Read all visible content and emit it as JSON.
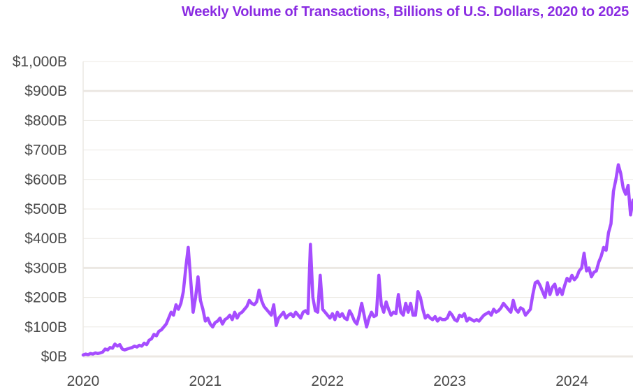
{
  "chart_data": {
    "type": "line",
    "title": "Weekly Volume of Transactions, Billions of U.S. Dollars, 2020 to 2025",
    "xlabel": "",
    "ylabel": "",
    "ylim": [
      0,
      1000
    ],
    "xlim": [
      2020.0,
      2024.5
    ],
    "grid": true,
    "line_color": "#a64dff",
    "title_color": "#8a2be2",
    "y_ticks": [
      {
        "value": 0,
        "label": "$0B"
      },
      {
        "value": 100,
        "label": "$100B"
      },
      {
        "value": 200,
        "label": "$200B"
      },
      {
        "value": 300,
        "label": "$300B"
      },
      {
        "value": 400,
        "label": "$400B"
      },
      {
        "value": 500,
        "label": "$500B"
      },
      {
        "value": 600,
        "label": "$600B"
      },
      {
        "value": 700,
        "label": "$700B"
      },
      {
        "value": 800,
        "label": "$800B"
      },
      {
        "value": 900,
        "label": "$900B"
      },
      {
        "value": 1000,
        "label": "$1,000B"
      }
    ],
    "x_ticks": [
      {
        "value": 2020,
        "label": "2020"
      },
      {
        "value": 2021,
        "label": "2021"
      },
      {
        "value": 2022,
        "label": "2022"
      },
      {
        "value": 2023,
        "label": "2023"
      },
      {
        "value": 2024,
        "label": "2024"
      }
    ],
    "series": [
      {
        "x": [
          2020.0,
          2020.02,
          2020.04,
          2020.06,
          2020.08,
          2020.1,
          2020.12,
          2020.14,
          2020.16,
          2020.18,
          2020.2,
          2020.22,
          2020.24,
          2020.26,
          2020.28,
          2020.3,
          2020.32,
          2020.34,
          2020.36,
          2020.38,
          2020.4,
          2020.42,
          2020.44,
          2020.46,
          2020.48,
          2020.5,
          2020.52,
          2020.54,
          2020.56,
          2020.58,
          2020.6,
          2020.62,
          2020.64,
          2020.66,
          2020.68,
          2020.7,
          2020.72,
          2020.74,
          2020.76,
          2020.78,
          2020.8,
          2020.82,
          2020.84,
          2020.86,
          2020.88,
          2020.9,
          2020.92,
          2020.94,
          2020.96,
          2020.98,
          2021.0,
          2021.02,
          2021.04,
          2021.06,
          2021.08,
          2021.1,
          2021.12,
          2021.14,
          2021.16,
          2021.18,
          2021.2,
          2021.22,
          2021.24,
          2021.26,
          2021.28,
          2021.3,
          2021.32,
          2021.34,
          2021.36,
          2021.38,
          2021.4,
          2021.42,
          2021.44,
          2021.46,
          2021.48,
          2021.5,
          2021.52,
          2021.54,
          2021.56,
          2021.58,
          2021.6,
          2021.62,
          2021.64,
          2021.66,
          2021.68,
          2021.7,
          2021.72,
          2021.74,
          2021.76,
          2021.78,
          2021.8,
          2021.82,
          2021.84,
          2021.86,
          2021.88,
          2021.9,
          2021.92,
          2021.94,
          2021.96,
          2021.98,
          2022.0,
          2022.02,
          2022.04,
          2022.06,
          2022.08,
          2022.1,
          2022.12,
          2022.14,
          2022.16,
          2022.18,
          2022.2,
          2022.22,
          2022.24,
          2022.26,
          2022.28,
          2022.3,
          2022.32,
          2022.34,
          2022.36,
          2022.38,
          2022.4,
          2022.42,
          2022.44,
          2022.46,
          2022.48,
          2022.5,
          2022.52,
          2022.54,
          2022.56,
          2022.58,
          2022.6,
          2022.62,
          2022.64,
          2022.66,
          2022.68,
          2022.7,
          2022.72,
          2022.74,
          2022.76,
          2022.78,
          2022.8,
          2022.82,
          2022.84,
          2022.86,
          2022.88,
          2022.9,
          2022.92,
          2022.94,
          2022.96,
          2022.98,
          2023.0,
          2023.02,
          2023.04,
          2023.06,
          2023.08,
          2023.1,
          2023.12,
          2023.14,
          2023.16,
          2023.18,
          2023.2,
          2023.22,
          2023.24,
          2023.26,
          2023.28,
          2023.3,
          2023.32,
          2023.34,
          2023.36,
          2023.38,
          2023.4,
          2023.42,
          2023.44,
          2023.46,
          2023.48,
          2023.5,
          2023.52,
          2023.54,
          2023.56,
          2023.58,
          2023.6,
          2023.62,
          2023.64,
          2023.66,
          2023.68,
          2023.7,
          2023.72,
          2023.74,
          2023.76,
          2023.78,
          2023.8,
          2023.82,
          2023.84,
          2023.86,
          2023.88,
          2023.9,
          2023.92,
          2023.94,
          2023.96,
          2023.98,
          2024.0,
          2024.02,
          2024.04,
          2024.06,
          2024.08,
          2024.1,
          2024.12,
          2024.14,
          2024.16,
          2024.18,
          2024.2,
          2024.22,
          2024.24,
          2024.26,
          2024.28,
          2024.3,
          2024.32,
          2024.34,
          2024.36,
          2024.38,
          2024.4,
          2024.42,
          2024.44,
          2024.46,
          2024.48,
          2024.5
        ],
        "values": [
          5,
          8,
          6,
          10,
          8,
          12,
          10,
          12,
          15,
          25,
          22,
          30,
          28,
          42,
          35,
          40,
          25,
          22,
          25,
          28,
          30,
          35,
          32,
          38,
          35,
          45,
          40,
          55,
          60,
          75,
          70,
          85,
          90,
          100,
          110,
          130,
          150,
          140,
          175,
          160,
          180,
          220,
          300,
          370,
          260,
          150,
          200,
          270,
          190,
          160,
          120,
          130,
          110,
          100,
          115,
          120,
          130,
          110,
          125,
          130,
          140,
          125,
          150,
          130,
          145,
          150,
          160,
          170,
          190,
          180,
          175,
          185,
          225,
          190,
          170,
          160,
          150,
          140,
          175,
          105,
          130,
          140,
          150,
          130,
          140,
          145,
          135,
          150,
          140,
          130,
          150,
          155,
          145,
          380,
          200,
          155,
          150,
          275,
          160,
          150,
          140,
          130,
          145,
          125,
          150,
          135,
          145,
          130,
          125,
          155,
          140,
          120,
          110,
          140,
          180,
          140,
          100,
          130,
          150,
          135,
          140,
          275,
          175,
          150,
          185,
          160,
          140,
          150,
          145,
          210,
          150,
          140,
          180,
          150,
          180,
          140,
          140,
          220,
          200,
          160,
          130,
          140,
          130,
          125,
          135,
          120,
          130,
          125,
          125,
          130,
          150,
          140,
          125,
          120,
          140,
          135,
          145,
          120,
          130,
          125,
          120,
          125,
          120,
          130,
          140,
          145,
          150,
          140,
          160,
          150,
          155,
          165,
          180,
          170,
          160,
          150,
          190,
          160,
          150,
          165,
          160,
          140,
          150,
          160,
          210,
          250,
          255,
          240,
          220,
          200,
          250,
          210,
          235,
          245,
          210,
          230,
          210,
          240,
          265,
          255,
          275,
          260,
          270,
          290,
          300,
          350,
          290,
          300,
          270,
          285,
          290,
          320,
          340,
          370,
          360,
          420,
          450,
          560,
          600,
          650,
          620,
          570,
          550,
          580,
          480,
          530
        ]
      }
    ]
  }
}
